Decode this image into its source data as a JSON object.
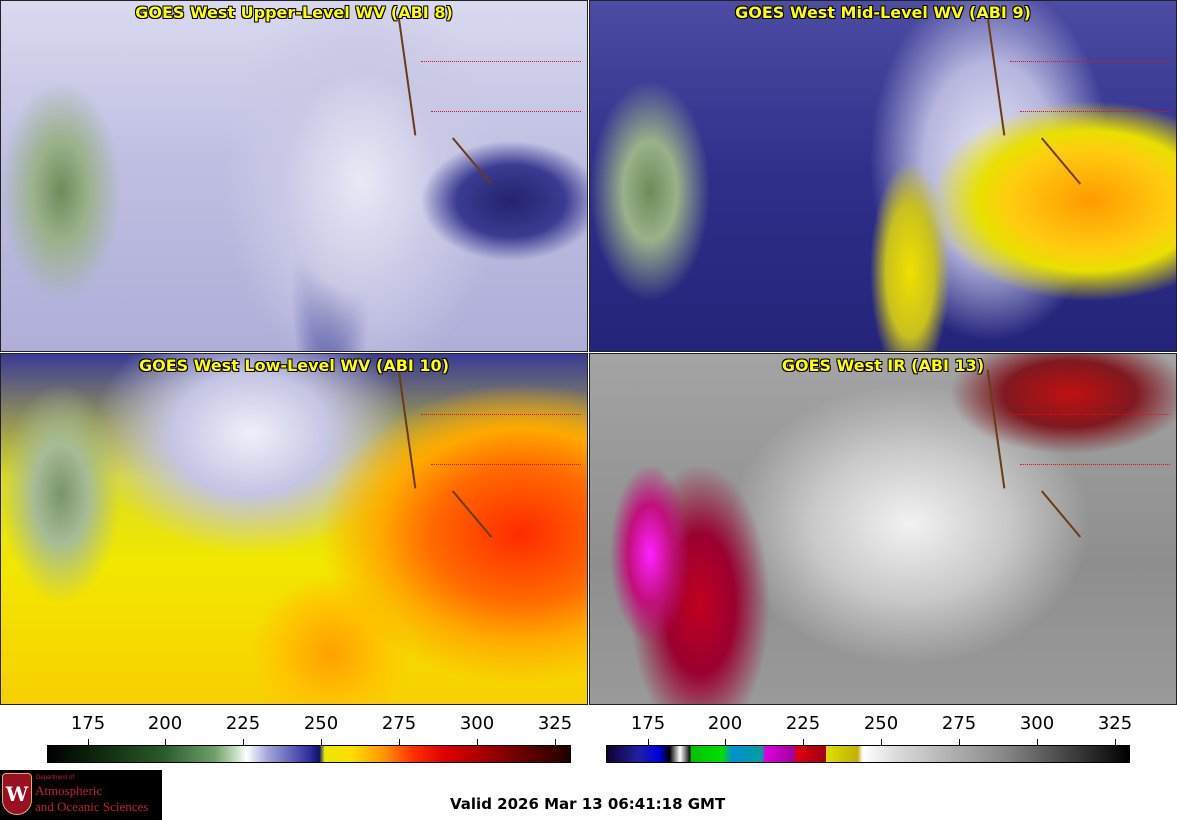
{
  "panels": [
    {
      "title": "GOES West Upper-Level WV (ABI 8)"
    },
    {
      "title": "GOES West Mid-Level WV (ABI 9)"
    },
    {
      "title": "GOES West Low-Level WV (ABI 10)"
    },
    {
      "title": "GOES West IR (ABI 13)"
    }
  ],
  "colorbars": {
    "wv_ticks": [
      "175",
      "200",
      "225",
      "250",
      "275",
      "300",
      "325"
    ],
    "ir_ticks": [
      "175",
      "200",
      "225",
      "250",
      "275",
      "300",
      "325"
    ]
  },
  "logo": {
    "line_small": "Department of",
    "line1": "Atmospheric",
    "line2": "and Oceanic Sciences",
    "seal_letter": "W"
  },
  "valid_time": "Valid 2026 Mar 13 06:41:18 GMT"
}
